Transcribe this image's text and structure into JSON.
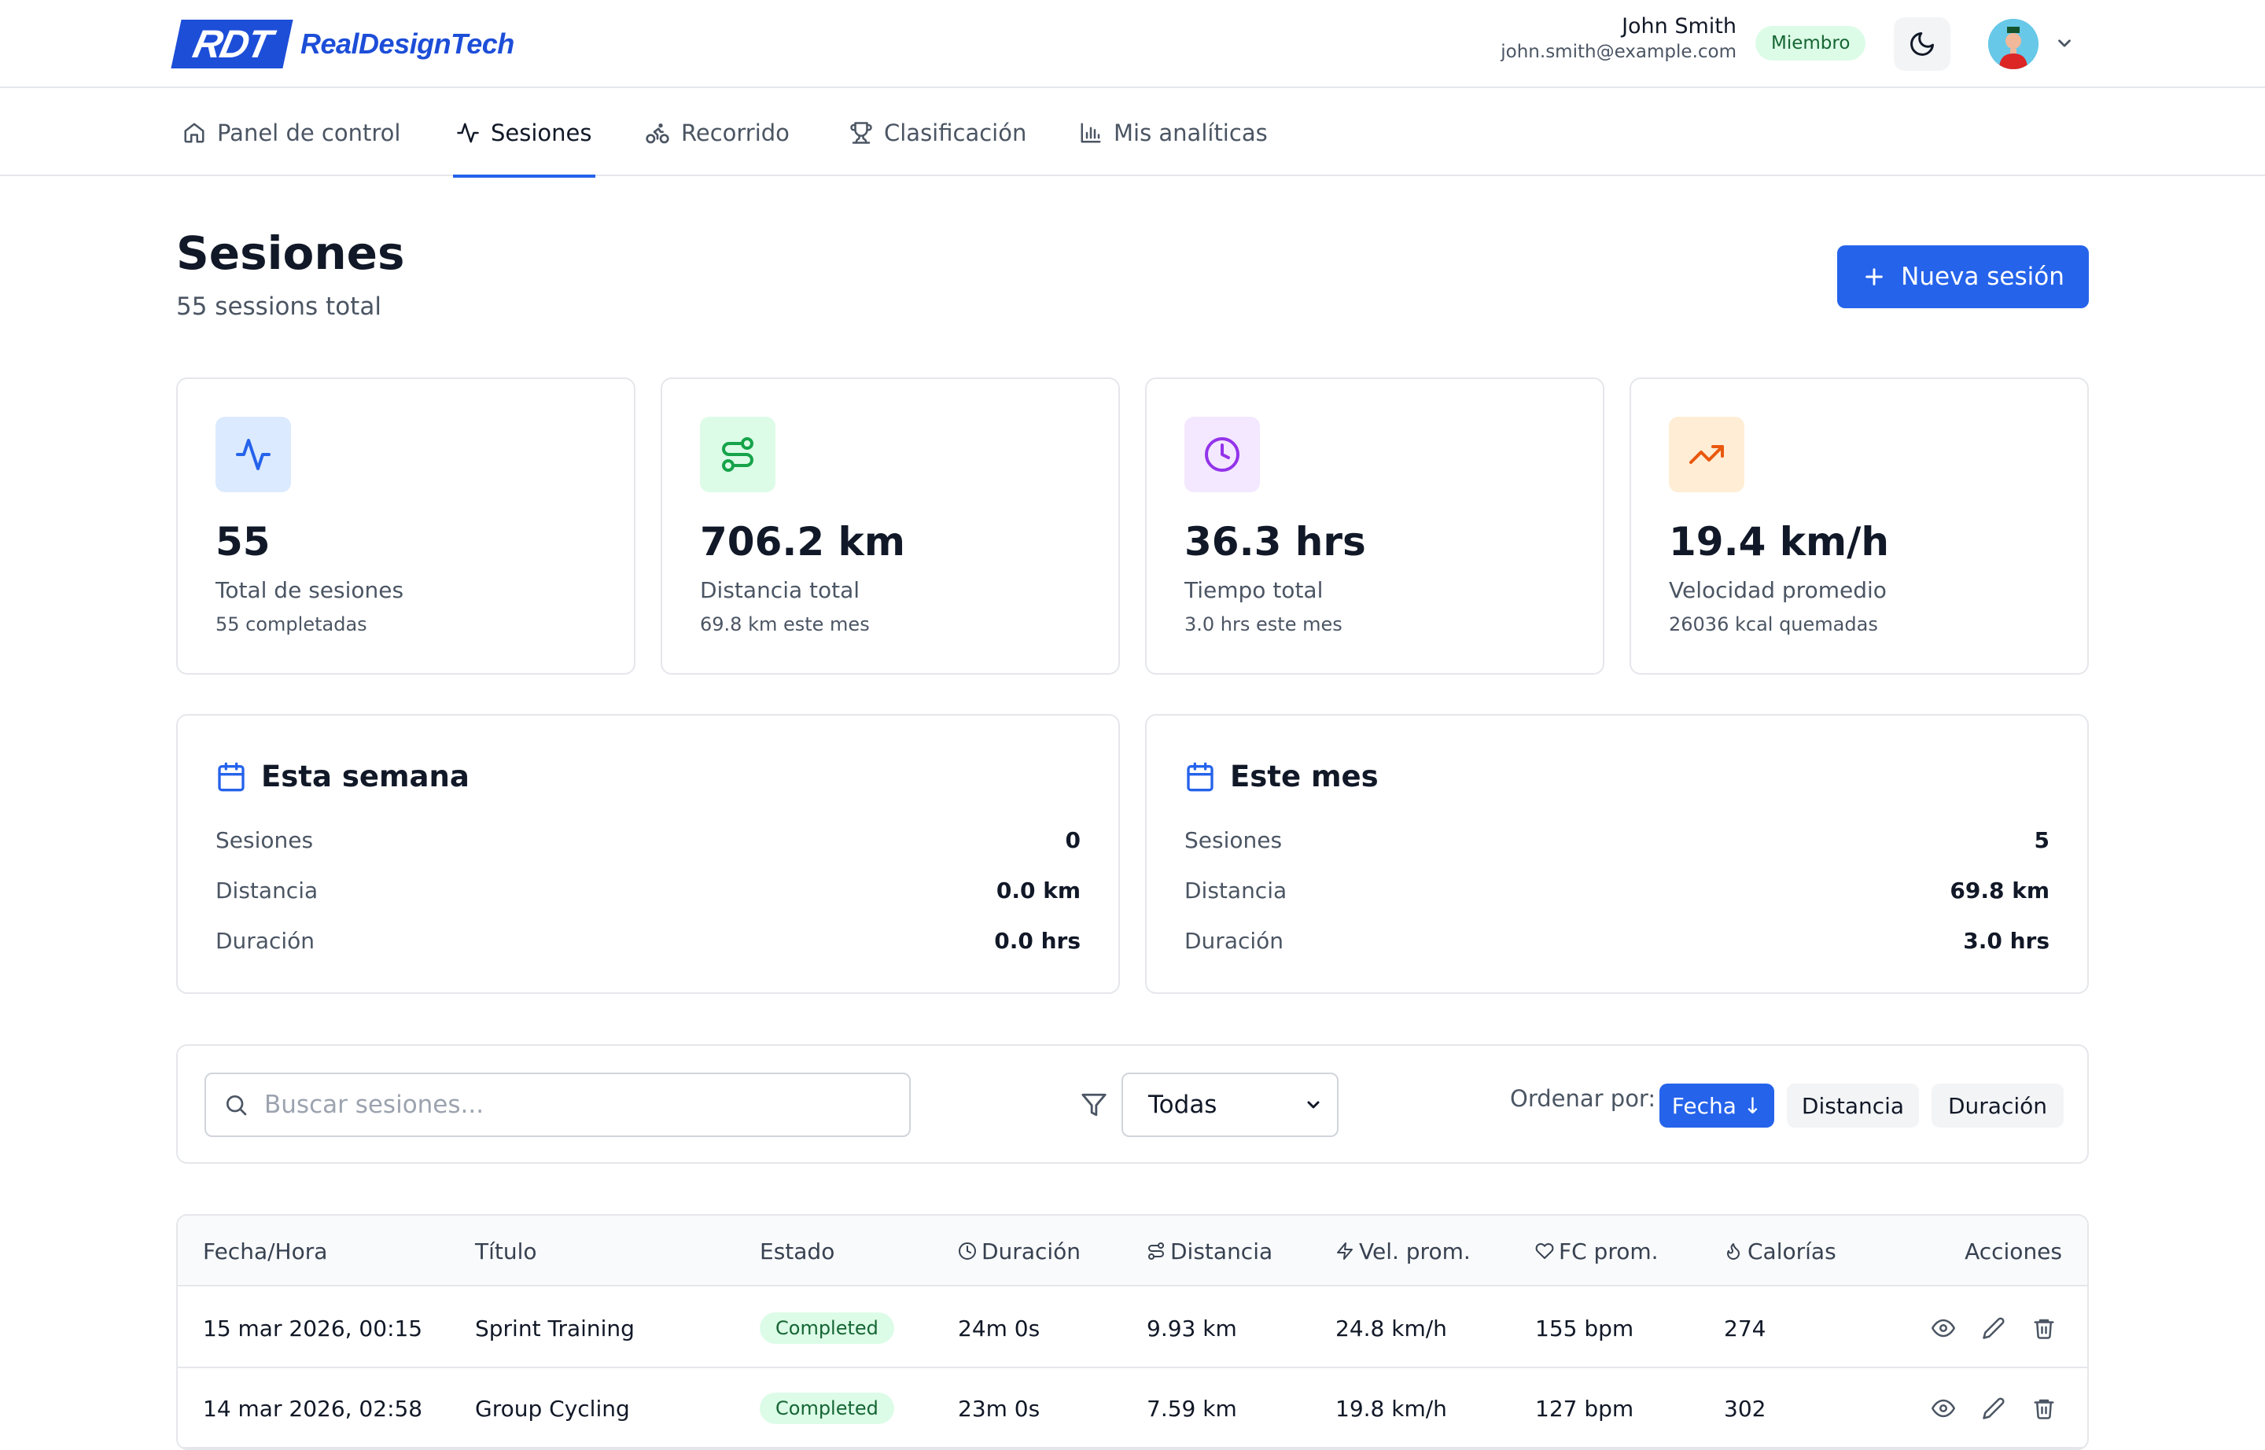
{
  "brand": {
    "mark": "RDT",
    "name": "RealDesignTech"
  },
  "user": {
    "name": "John Smith",
    "email": "john.smith@example.com",
    "role_badge": "Miembro"
  },
  "nav": {
    "items": [
      {
        "label": "Panel de control",
        "icon": "home-icon"
      },
      {
        "label": "Sesiones",
        "icon": "activity-icon",
        "active": true
      },
      {
        "label": "Recorrido",
        "icon": "bike-icon"
      },
      {
        "label": "Clasificación",
        "icon": "trophy-icon"
      },
      {
        "label": "Mis analíticas",
        "icon": "bar-chart-icon"
      }
    ]
  },
  "page": {
    "title": "Sesiones",
    "subtitle": "55 sessions total",
    "new_button": "Nueva sesión"
  },
  "stats": [
    {
      "value": "55",
      "label": "Total de sesiones",
      "sub": "55 completadas",
      "icon": "activity-icon",
      "color": "#2563eb",
      "bg": "#dbeafe"
    },
    {
      "value": "706.2 km",
      "label": "Distancia total",
      "sub": "69.8 km este mes",
      "icon": "route-icon",
      "color": "#16a34a",
      "bg": "#dcfce7"
    },
    {
      "value": "36.3 hrs",
      "label": "Tiempo total",
      "sub": "3.0 hrs este mes",
      "icon": "clock-icon",
      "color": "#9333ea",
      "bg": "#f3e8ff"
    },
    {
      "value": "19.4 km/h",
      "label": "Velocidad promedio",
      "sub": "26036 kcal quemadas",
      "icon": "trending-up-icon",
      "color": "#ea580c",
      "bg": "#ffedd5"
    }
  ],
  "week": {
    "title": "Esta semana",
    "rows": [
      {
        "label": "Sesiones",
        "value": "0"
      },
      {
        "label": "Distancia",
        "value": "0.0 km"
      },
      {
        "label": "Duración",
        "value": "0.0 hrs"
      }
    ]
  },
  "month": {
    "title": "Este mes",
    "rows": [
      {
        "label": "Sesiones",
        "value": "5"
      },
      {
        "label": "Distancia",
        "value": "69.8 km"
      },
      {
        "label": "Duración",
        "value": "3.0 hrs"
      }
    ]
  },
  "filters": {
    "search_placeholder": "Buscar sesiones...",
    "status_selected": "Todas",
    "sort_label": "Ordenar por:",
    "sort_options": [
      "Fecha ↓",
      "Distancia",
      "Duración"
    ]
  },
  "table": {
    "headers": [
      "Fecha/Hora",
      "Título",
      "Estado",
      "Duración",
      "Distancia",
      "Vel. prom.",
      "FC prom.",
      "Calorías",
      "Acciones"
    ],
    "rows": [
      {
        "date": "15 mar 2026, 00:15",
        "title": "Sprint Training",
        "status": "Completed",
        "duration": "24m 0s",
        "distance": "9.93 km",
        "speed": "24.8 km/h",
        "hr": "155 bpm",
        "calories": "274"
      },
      {
        "date": "14 mar 2026, 02:58",
        "title": "Group Cycling",
        "status": "Completed",
        "duration": "23m 0s",
        "distance": "7.59 km",
        "speed": "19.8 km/h",
        "hr": "127 bpm",
        "calories": "302"
      }
    ]
  }
}
